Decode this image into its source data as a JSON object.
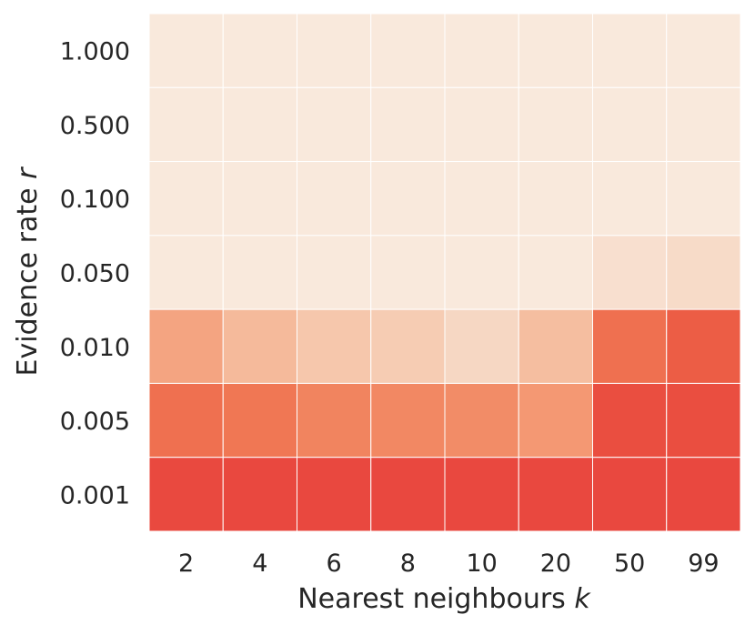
{
  "chart_data": {
    "type": "heatmap",
    "title": "",
    "xlabel": "Nearest neighbours",
    "xlabel_var": "k",
    "ylabel": "Evidence rate",
    "ylabel_var": "r",
    "x_categories": [
      "2",
      "4",
      "6",
      "8",
      "10",
      "20",
      "50",
      "99"
    ],
    "y_categories": [
      "1.000",
      "0.500",
      "0.100",
      "0.050",
      "0.010",
      "0.005",
      "0.001"
    ],
    "values": [
      [
        0.0,
        0.0,
        0.0,
        0.0,
        0.0,
        0.0,
        0.0,
        0.0
      ],
      [
        0.0,
        0.0,
        0.0,
        0.0,
        0.0,
        0.0,
        0.0,
        0.0
      ],
      [
        0.0,
        0.0,
        0.0,
        0.0,
        0.0,
        0.0,
        0.0,
        0.0
      ],
      [
        0.0,
        0.0,
        0.0,
        0.0,
        0.0,
        0.0,
        0.08,
        0.12
      ],
      [
        0.45,
        0.32,
        0.25,
        0.22,
        0.15,
        0.3,
        0.72,
        0.82
      ],
      [
        0.72,
        0.68,
        0.62,
        0.6,
        0.58,
        0.52,
        0.92,
        0.92
      ],
      [
        0.95,
        0.96,
        0.96,
        0.96,
        0.96,
        0.96,
        0.96,
        0.96
      ]
    ],
    "colormap": [
      "#f9e9dc",
      "#f6d5c0",
      "#f5b898",
      "#f49c77",
      "#f07a55",
      "#ec5a44",
      "#e8423d"
    ],
    "grid": true,
    "colorbar": false
  }
}
